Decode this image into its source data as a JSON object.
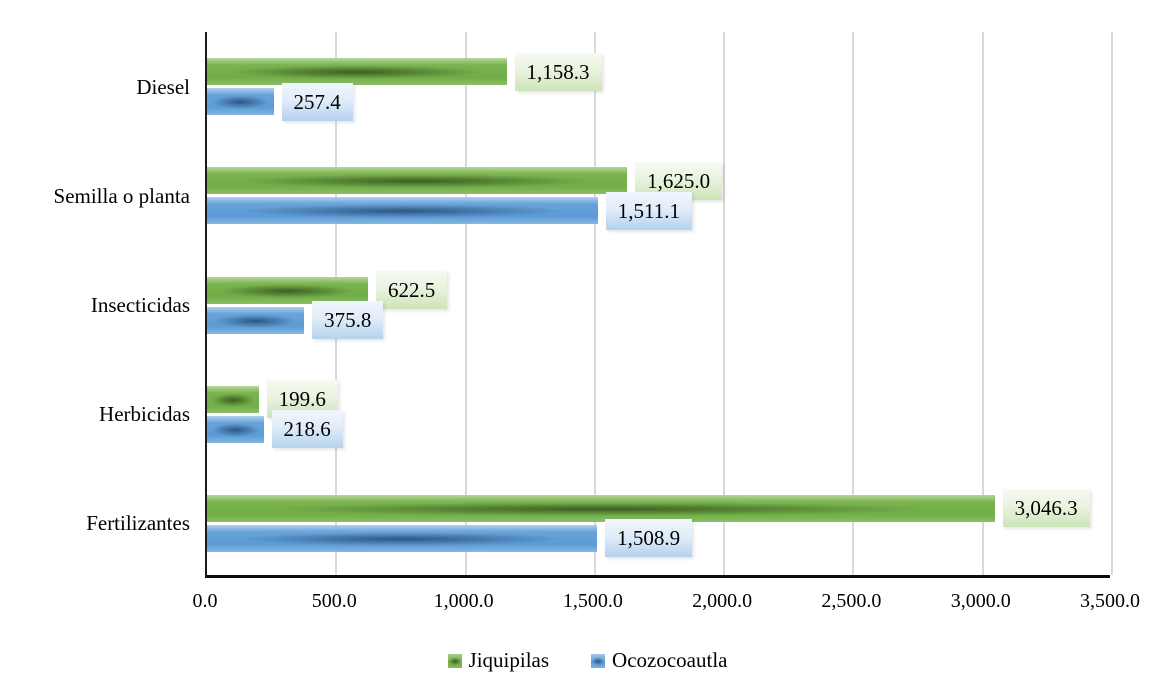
{
  "chart_data": {
    "type": "bar",
    "orientation": "horizontal",
    "title": "",
    "xlabel": "",
    "ylabel": "",
    "categories": [
      "Diesel",
      "Semilla o planta",
      "Insecticidas",
      "Herbicidas",
      "Fertilizantes"
    ],
    "series": [
      {
        "name": "Jiquipilas",
        "color": "#70ad47",
        "values": [
          1158.3,
          1625.0,
          622.5,
          199.6,
          3046.3
        ],
        "value_labels": [
          "1,158.3",
          "1,625.0",
          "622.5",
          "199.6",
          "3,046.3"
        ]
      },
      {
        "name": "Ocozocoautla",
        "color": "#5b9bd5",
        "values": [
          257.4,
          1511.1,
          375.8,
          218.6,
          1508.9
        ],
        "value_labels": [
          "257.4",
          "1,511.1",
          "375.8",
          "218.6",
          "1,508.9"
        ]
      }
    ],
    "xlim": [
      0,
      3500
    ],
    "x_tick_step": 500,
    "x_tick_labels": [
      "0.0",
      "500.0",
      "1,000.0",
      "1,500.0",
      "2,000.0",
      "2,500.0",
      "3,000.0",
      "3,500.0"
    ],
    "grid": true,
    "gridline_color": "#d9d9d9",
    "axis_color": "#1a1a1a",
    "legend_position": "bottom",
    "data_labels_on": true
  }
}
